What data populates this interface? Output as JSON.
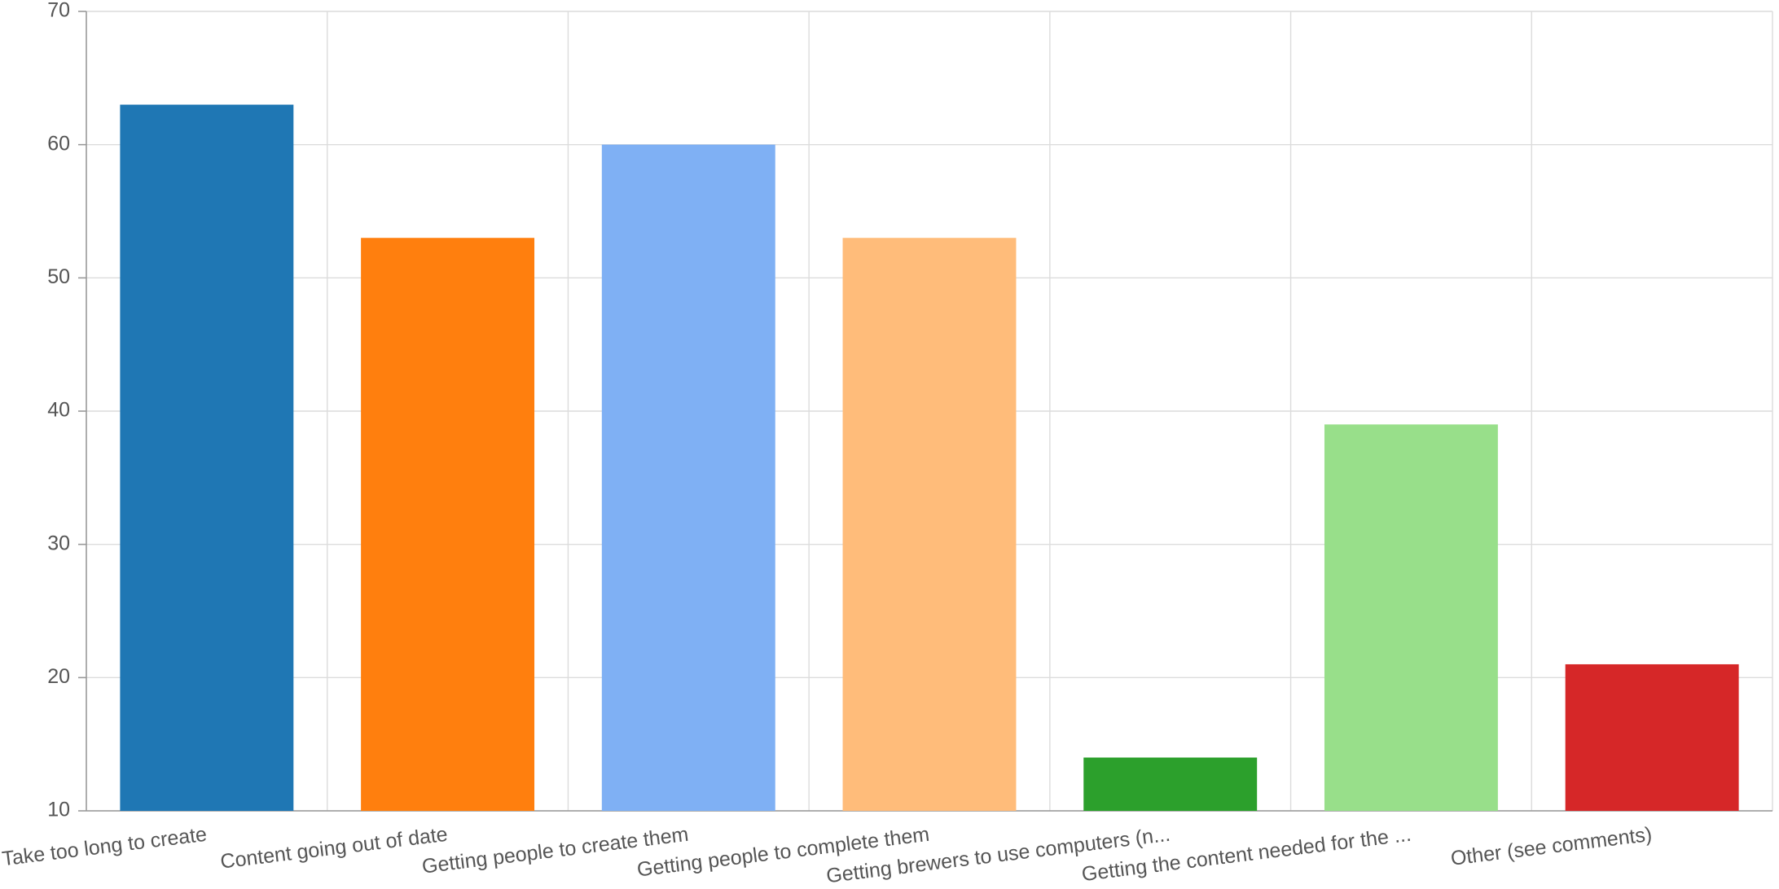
{
  "chart_data": {
    "type": "bar",
    "categories": [
      "Take too long to create",
      "Content going out of date",
      "Getting people to create them",
      "Getting people to complete them",
      "Getting brewers to use computers (n...",
      "Getting the content needed for the ...",
      "Other (see comments)"
    ],
    "values": [
      63,
      53,
      60,
      53,
      14,
      39,
      21
    ],
    "colors": [
      "#1f77b4",
      "#ff7f0e",
      "#7fb0f4",
      "#ffbc7a",
      "#2ca02c",
      "#98df8a",
      "#d62728"
    ],
    "ylim": [
      10,
      70
    ],
    "yticks": [
      10,
      20,
      30,
      40,
      50,
      60,
      70
    ],
    "grid": true
  }
}
